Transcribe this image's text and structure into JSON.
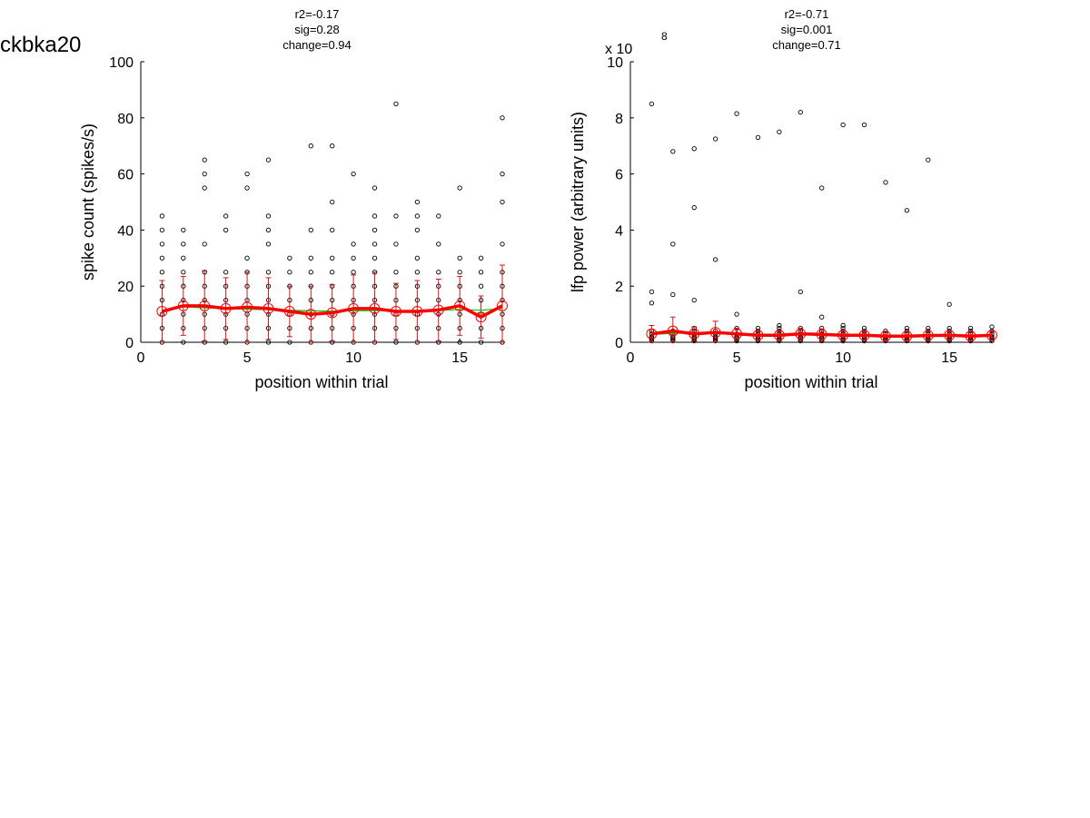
{
  "figure_label": "ckbka20",
  "chart_data": [
    {
      "type": "scatter",
      "stats": [
        "r2=-0.17",
        "sig=0.28",
        "change=0.94"
      ],
      "xlabel": "position within trial",
      "ylabel": "spike count (spikes/s)",
      "xlim": [
        0,
        17
      ],
      "ylim": [
        0,
        100
      ],
      "xticks": [
        0,
        5,
        10,
        15
      ],
      "yticks": [
        0,
        20,
        40,
        60,
        80,
        100
      ],
      "exponent": "",
      "grid": false,
      "colors": {
        "points": "#000000",
        "mean": "#ff0000",
        "fit": "#00cc00",
        "error": "#cc0000"
      },
      "points": [
        {
          "x": 1,
          "y": [
            0,
            5,
            10,
            15,
            20,
            25,
            30,
            35,
            40,
            45
          ]
        },
        {
          "x": 2,
          "y": [
            0,
            5,
            10,
            15,
            20,
            25,
            30,
            35,
            40
          ]
        },
        {
          "x": 3,
          "y": [
            0,
            5,
            10,
            15,
            20,
            25,
            35,
            55,
            60,
            65
          ]
        },
        {
          "x": 4,
          "y": [
            0,
            5,
            10,
            15,
            20,
            25,
            40,
            45
          ]
        },
        {
          "x": 5,
          "y": [
            0,
            5,
            10,
            15,
            20,
            25,
            30,
            55,
            60
          ]
        },
        {
          "x": 6,
          "y": [
            0,
            5,
            10,
            15,
            20,
            25,
            35,
            40,
            45,
            65
          ]
        },
        {
          "x": 7,
          "y": [
            0,
            5,
            10,
            15,
            20,
            25,
            30
          ]
        },
        {
          "x": 8,
          "y": [
            0,
            5,
            10,
            15,
            20,
            25,
            30,
            40,
            70
          ]
        },
        {
          "x": 9,
          "y": [
            0,
            5,
            10,
            15,
            20,
            25,
            30,
            40,
            50,
            70
          ]
        },
        {
          "x": 10,
          "y": [
            0,
            5,
            10,
            15,
            20,
            25,
            30,
            35,
            60
          ]
        },
        {
          "x": 11,
          "y": [
            0,
            5,
            10,
            15,
            20,
            25,
            30,
            35,
            40,
            45,
            55
          ]
        },
        {
          "x": 12,
          "y": [
            0,
            5,
            10,
            15,
            20,
            25,
            35,
            45,
            85
          ]
        },
        {
          "x": 13,
          "y": [
            0,
            5,
            10,
            15,
            20,
            25,
            30,
            40,
            45,
            50
          ]
        },
        {
          "x": 14,
          "y": [
            0,
            5,
            10,
            15,
            20,
            25,
            35,
            45
          ]
        },
        {
          "x": 15,
          "y": [
            0,
            5,
            10,
            15,
            20,
            25,
            30,
            55
          ]
        },
        {
          "x": 16,
          "y": [
            0,
            5,
            10,
            15,
            20,
            25,
            30
          ]
        },
        {
          "x": 17,
          "y": [
            0,
            5,
            10,
            15,
            20,
            25,
            35,
            50,
            60,
            80
          ]
        }
      ],
      "mean": [
        11,
        13,
        13,
        12,
        12.5,
        12,
        11,
        10,
        10.5,
        12,
        12,
        11,
        11,
        11.5,
        13,
        9,
        13
      ],
      "error": [
        11,
        10.5,
        12.5,
        11,
        12.5,
        11,
        9,
        10,
        10,
        12,
        13,
        10,
        11,
        11,
        10.5,
        7.5,
        14.5
      ],
      "fit": [
        11.5,
        12.6,
        12.3,
        12.0,
        11.8,
        11.6,
        11.4,
        11.2,
        11.1,
        11.2,
        11.3,
        11.2,
        11.1,
        11.3,
        11.7,
        11.4,
        12.0
      ]
    },
    {
      "type": "scatter",
      "stats": [
        "r2=-0.71",
        "sig=0.001",
        "change=0.71"
      ],
      "xlabel": "position within trial",
      "ylabel": "lfp power (arbitrary units)",
      "xlim": [
        0,
        17
      ],
      "ylim": [
        0,
        10
      ],
      "xticks": [
        0,
        5,
        10,
        15
      ],
      "yticks": [
        0,
        2,
        4,
        6,
        8,
        10
      ],
      "exponent": "8",
      "exponent_prefix": "x 10",
      "grid": false,
      "colors": {
        "points": "#000000",
        "mean": "#ff0000",
        "fit": "#00cc00",
        "error": "#cc0000"
      },
      "points": [
        {
          "x": 1,
          "y": [
            0.05,
            0.1,
            0.15,
            0.2,
            0.3,
            0.4,
            1.4,
            1.8,
            8.5
          ]
        },
        {
          "x": 2,
          "y": [
            0.05,
            0.1,
            0.15,
            0.2,
            0.3,
            0.4,
            1.7,
            3.5,
            6.8
          ]
        },
        {
          "x": 3,
          "y": [
            0.05,
            0.1,
            0.15,
            0.2,
            0.3,
            0.4,
            0.5,
            1.5,
            4.8,
            6.9
          ]
        },
        {
          "x": 4,
          "y": [
            0.05,
            0.1,
            0.15,
            0.2,
            0.3,
            0.4,
            2.95,
            7.25
          ]
        },
        {
          "x": 5,
          "y": [
            0.05,
            0.1,
            0.15,
            0.2,
            0.3,
            0.5,
            1.0,
            8.15
          ]
        },
        {
          "x": 6,
          "y": [
            0.05,
            0.1,
            0.15,
            0.2,
            0.3,
            0.4,
            0.5,
            7.3
          ]
        },
        {
          "x": 7,
          "y": [
            0.05,
            0.1,
            0.15,
            0.2,
            0.3,
            0.4,
            0.5,
            0.6,
            7.5
          ]
        },
        {
          "x": 8,
          "y": [
            0.05,
            0.1,
            0.15,
            0.2,
            0.3,
            0.4,
            0.5,
            1.8,
            8.2
          ]
        },
        {
          "x": 9,
          "y": [
            0.05,
            0.1,
            0.15,
            0.2,
            0.3,
            0.4,
            0.5,
            0.9,
            5.5
          ]
        },
        {
          "x": 10,
          "y": [
            0.05,
            0.1,
            0.15,
            0.2,
            0.3,
            0.4,
            0.5,
            0.6,
            7.75
          ]
        },
        {
          "x": 11,
          "y": [
            0.05,
            0.1,
            0.15,
            0.2,
            0.3,
            0.4,
            0.5,
            7.75
          ]
        },
        {
          "x": 12,
          "y": [
            0.05,
            0.1,
            0.15,
            0.2,
            0.3,
            0.4,
            5.7
          ]
        },
        {
          "x": 13,
          "y": [
            0.05,
            0.1,
            0.15,
            0.2,
            0.3,
            0.4,
            0.5,
            4.7
          ]
        },
        {
          "x": 14,
          "y": [
            0.05,
            0.1,
            0.15,
            0.2,
            0.3,
            0.4,
            0.5,
            6.5
          ]
        },
        {
          "x": 15,
          "y": [
            0.05,
            0.1,
            0.15,
            0.2,
            0.3,
            0.4,
            0.5,
            1.35
          ]
        },
        {
          "x": 16,
          "y": [
            0.05,
            0.1,
            0.15,
            0.2,
            0.3,
            0.4,
            0.5
          ]
        },
        {
          "x": 17,
          "y": [
            0.05,
            0.1,
            0.15,
            0.2,
            0.3,
            0.4,
            0.55
          ]
        }
      ],
      "mean": [
        0.3,
        0.4,
        0.3,
        0.35,
        0.3,
        0.25,
        0.25,
        0.3,
        0.28,
        0.25,
        0.25,
        0.22,
        0.22,
        0.24,
        0.25,
        0.22,
        0.25
      ],
      "error": [
        0.3,
        0.5,
        0.25,
        0.4,
        0.2,
        0.15,
        0.15,
        0.2,
        0.2,
        0.15,
        0.15,
        0.12,
        0.12,
        0.15,
        0.15,
        0.12,
        0.15
      ],
      "fit": [
        0.28,
        0.32,
        0.33,
        0.32,
        0.3,
        0.28,
        0.27,
        0.27,
        0.26,
        0.25,
        0.25,
        0.24,
        0.24,
        0.23,
        0.23,
        0.23,
        0.22
      ]
    }
  ]
}
